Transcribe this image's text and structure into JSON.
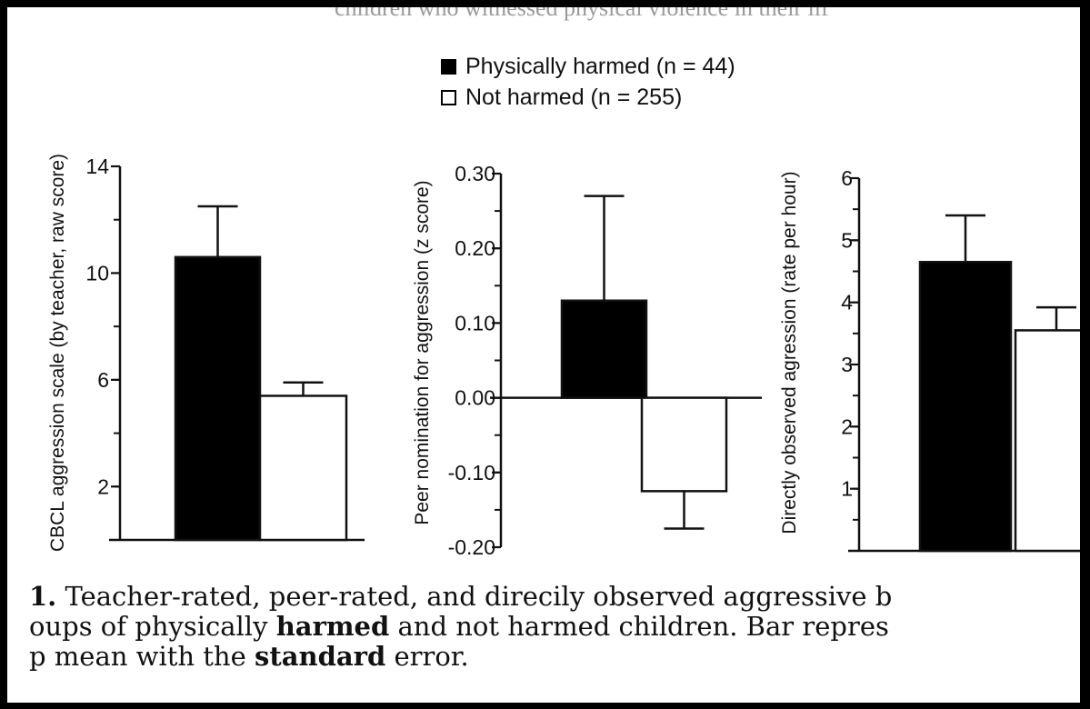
{
  "top_fragment": "children who witnessed physical violence in their lif",
  "legend": [
    {
      "label": "Physically harmed (n = 44)",
      "color": "#000000"
    },
    {
      "label": "Not harmed (n = 255)",
      "color": "#ffffff"
    }
  ],
  "chart_data": [
    {
      "type": "bar",
      "ylabel": "CBCL aggression scale (by teacher, raw score)",
      "ylim": [
        0,
        14
      ],
      "yticks": [
        {
          "v": 2,
          "t": "2"
        },
        {
          "v": 6,
          "t": "6"
        },
        {
          "v": 10,
          "t": "10"
        },
        {
          "v": 14,
          "t": "14"
        }
      ],
      "series": [
        {
          "name": "Physically harmed (n = 44)",
          "value": 10.6,
          "error": 1.9,
          "color": "#000000"
        },
        {
          "name": "Not harmed (n = 255)",
          "value": 5.4,
          "error": 0.5,
          "color": "#ffffff"
        }
      ]
    },
    {
      "type": "bar",
      "ylabel": "Peer nomination for aggression (z score)",
      "ylim": [
        -0.2,
        0.3
      ],
      "yticks": [
        {
          "v": -0.2,
          "t": "-0.20"
        },
        {
          "v": -0.1,
          "t": "-0.10"
        },
        {
          "v": 0,
          "t": "0.00"
        },
        {
          "v": 0.1,
          "t": "0.10"
        },
        {
          "v": 0.2,
          "t": "0.20"
        },
        {
          "v": 0.3,
          "t": "0.30"
        }
      ],
      "series": [
        {
          "name": "Physically harmed (n = 44)",
          "value": 0.13,
          "error": 0.14,
          "color": "#000000"
        },
        {
          "name": "Not harmed (n = 255)",
          "value": -0.125,
          "error": 0.05,
          "color": "#ffffff"
        }
      ]
    },
    {
      "type": "bar",
      "ylabel": "Directly observed agression (rate per hour)",
      "ylim": [
        0,
        6
      ],
      "yticks": [
        {
          "v": 1,
          "t": "1"
        },
        {
          "v": 2,
          "t": "2"
        },
        {
          "v": 3,
          "t": "3"
        },
        {
          "v": 4,
          "t": "4"
        },
        {
          "v": 5,
          "t": "5"
        },
        {
          "v": 6,
          "t": "6"
        }
      ],
      "series": [
        {
          "name": "Physically harmed (n = 44)",
          "value": 4.65,
          "error": 0.75,
          "color": "#000000"
        },
        {
          "name": "Not harmed (n = 255)",
          "value": 3.55,
          "error": 0.37,
          "color": "#ffffff"
        }
      ]
    }
  ],
  "caption": {
    "line1": {
      "num": "1.",
      "text": " Teacher-rated, peer-rated, and direcily observed aggressive b"
    },
    "line2": {
      "a": "oups of physically ",
      "b": "harmed",
      "c": " and not harmed children. Bar repres"
    },
    "line3": {
      "a": "p mean with the ",
      "b": "standard",
      "c": " error."
    }
  }
}
